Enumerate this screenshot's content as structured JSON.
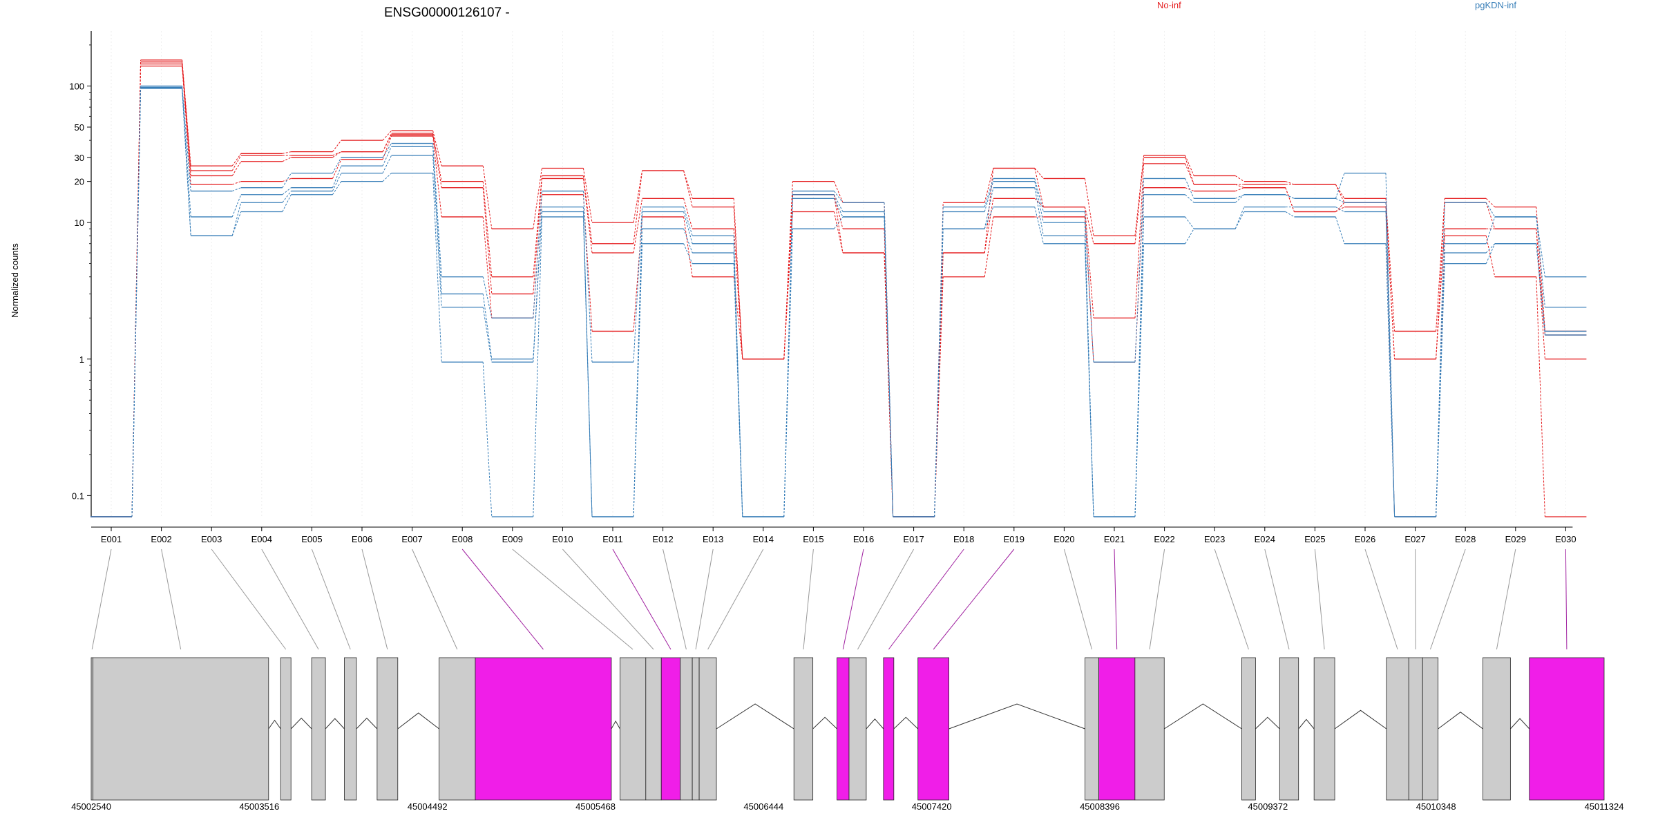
{
  "chart_data": {
    "type": "line",
    "title": "ENSG00000126107 -",
    "ylabel": "Normalized counts",
    "yscale": "log",
    "ylim": [
      0.07,
      200
    ],
    "yticks": [
      {
        "value": 0.1,
        "label": "0.1"
      },
      {
        "value": 1,
        "label": "1"
      },
      {
        "value": 10,
        "label": "10"
      },
      {
        "value": 20,
        "label": "20"
      },
      {
        "value": 30,
        "label": "30"
      },
      {
        "value": 50,
        "label": "50"
      },
      {
        "value": 100,
        "label": "100"
      }
    ],
    "legend": [
      {
        "label": "No-inf",
        "color": "#e41a1c"
      },
      {
        "label": "pgKDN-inf",
        "color": "#377eb8"
      }
    ],
    "grid": "vertical",
    "categories": [
      "E001",
      "E002",
      "E003",
      "E004",
      "E005",
      "E006",
      "E007",
      "E008",
      "E009",
      "E010",
      "E011",
      "E012",
      "E013",
      "E014",
      "E015",
      "E016",
      "E017",
      "E018",
      "E019",
      "E020",
      "E021",
      "E022",
      "E023",
      "E024",
      "E025",
      "E026",
      "E027",
      "E028",
      "E029",
      "E030"
    ],
    "series": [
      {
        "group": "No-inf",
        "color": "#e41a1c",
        "values": [
          0.07,
          155,
          26,
          32,
          33,
          40,
          47,
          26,
          9,
          25,
          10,
          24,
          15,
          1,
          20,
          14,
          0.07,
          14,
          25,
          21,
          8,
          31,
          22,
          20,
          19,
          15,
          1.6,
          15,
          13,
          1.6
        ]
      },
      {
        "group": "No-inf",
        "color": "#e41a1c",
        "values": [
          0.07,
          150,
          24,
          31,
          31,
          33,
          45,
          20,
          4,
          22,
          7,
          24,
          13,
          1,
          16,
          9,
          0.07,
          6,
          25,
          13,
          7,
          30,
          19,
          19,
          19,
          14,
          1,
          14,
          9,
          1.5
        ]
      },
      {
        "group": "No-inf",
        "color": "#e41a1c",
        "values": [
          0.07,
          145,
          22,
          28,
          30,
          33,
          44,
          18,
          3,
          21,
          6,
          15,
          9,
          1,
          16,
          6,
          0.07,
          6,
          15,
          13,
          2,
          27,
          19,
          18,
          12,
          14,
          1,
          9,
          9,
          1
        ]
      },
      {
        "group": "No-inf",
        "color": "#e41a1c",
        "values": [
          0.07,
          140,
          19,
          20,
          21,
          29,
          43,
          11,
          2,
          16,
          1.6,
          11,
          4,
          1,
          12,
          6,
          0.07,
          4,
          11,
          11,
          0.95,
          18,
          17,
          18,
          12,
          13,
          0.07,
          8,
          4,
          0.07
        ]
      },
      {
        "group": "pgKDN-inf",
        "color": "#377eb8",
        "values": [
          0.07,
          100,
          17,
          18,
          23,
          30,
          38,
          4,
          2,
          17,
          0.95,
          13,
          8,
          0.07,
          17,
          14,
          0.07,
          13,
          21,
          12,
          0.95,
          21,
          15,
          16,
          15,
          23,
          0.07,
          14,
          11,
          4
        ]
      },
      {
        "group": "pgKDN-inf",
        "color": "#377eb8",
        "values": [
          0.07,
          98,
          11,
          16,
          18,
          26,
          36,
          3,
          1,
          13,
          0.07,
          12,
          7,
          0.07,
          16,
          12,
          0.07,
          12,
          20,
          10,
          0.07,
          16,
          14,
          16,
          15,
          14,
          0.07,
          7,
          11,
          2.4
        ]
      },
      {
        "group": "pgKDN-inf",
        "color": "#377eb8",
        "values": [
          0.07,
          97,
          8,
          14,
          17,
          23,
          31,
          2.4,
          0.95,
          12,
          0.07,
          9,
          6,
          0.07,
          15,
          11,
          0.07,
          9,
          18,
          8,
          0.07,
          11,
          9,
          13,
          13,
          12,
          0.07,
          6,
          7,
          1.6
        ]
      },
      {
        "group": "pgKDN-inf",
        "color": "#377eb8",
        "values": [
          0.07,
          96,
          8,
          12,
          16,
          20,
          23,
          0.95,
          0.07,
          11,
          0.07,
          7,
          5,
          0.07,
          9,
          11,
          0.07,
          9,
          13,
          7,
          0.07,
          7,
          9,
          12,
          11,
          7,
          0.07,
          5,
          7,
          1.5
        ]
      }
    ],
    "exon_highlight": [
      false,
      false,
      false,
      false,
      false,
      false,
      false,
      true,
      false,
      false,
      true,
      false,
      false,
      false,
      false,
      true,
      false,
      true,
      true,
      false,
      true,
      false,
      false,
      false,
      false,
      false,
      false,
      false,
      false,
      true
    ],
    "gene_model": {
      "coord_range": [
        45002540,
        45011324
      ],
      "coord_labels": [
        "45002540",
        "45003516",
        "45004492",
        "45005468",
        "45006444",
        "45007420",
        "45008396",
        "45009372",
        "45010348",
        "45011324"
      ],
      "exons": [
        {
          "start": 45002540,
          "end": 45002550,
          "hl": false
        },
        {
          "start": 45002550,
          "end": 45003570,
          "hl": false
        },
        {
          "start": 45003640,
          "end": 45003700,
          "hl": false
        },
        {
          "start": 45003820,
          "end": 45003900,
          "hl": false
        },
        {
          "start": 45004010,
          "end": 45004080,
          "hl": false
        },
        {
          "start": 45004200,
          "end": 45004320,
          "hl": false
        },
        {
          "start": 45004560,
          "end": 45004770,
          "hl": false
        },
        {
          "start": 45004770,
          "end": 45005560,
          "hl": true
        },
        {
          "start": 45005610,
          "end": 45005760,
          "hl": false
        },
        {
          "start": 45005760,
          "end": 45005850,
          "hl": false
        },
        {
          "start": 45005850,
          "end": 45005960,
          "hl": true
        },
        {
          "start": 45005960,
          "end": 45006030,
          "hl": false
        },
        {
          "start": 45006030,
          "end": 45006070,
          "hl": false
        },
        {
          "start": 45006070,
          "end": 45006170,
          "hl": false
        },
        {
          "start": 45006620,
          "end": 45006730,
          "hl": false
        },
        {
          "start": 45006870,
          "end": 45006940,
          "hl": true
        },
        {
          "start": 45006940,
          "end": 45007040,
          "hl": false
        },
        {
          "start": 45007140,
          "end": 45007200,
          "hl": true
        },
        {
          "start": 45007340,
          "end": 45007520,
          "hl": true
        },
        {
          "start": 45008310,
          "end": 45008390,
          "hl": false
        },
        {
          "start": 45008390,
          "end": 45008600,
          "hl": true
        },
        {
          "start": 45008600,
          "end": 45008770,
          "hl": false
        },
        {
          "start": 45009220,
          "end": 45009300,
          "hl": false
        },
        {
          "start": 45009440,
          "end": 45009550,
          "hl": false
        },
        {
          "start": 45009640,
          "end": 45009760,
          "hl": false
        },
        {
          "start": 45010060,
          "end": 45010190,
          "hl": false
        },
        {
          "start": 45010190,
          "end": 45010270,
          "hl": false
        },
        {
          "start": 45010270,
          "end": 45010360,
          "hl": false
        },
        {
          "start": 45010620,
          "end": 45010780,
          "hl": false
        },
        {
          "start": 45010890,
          "end": 45011324,
          "hl": true
        }
      ],
      "introns": [
        [
          45003570,
          45003640
        ],
        [
          45003700,
          45003820
        ],
        [
          45003900,
          45004010
        ],
        [
          45004080,
          45004200
        ],
        [
          45004320,
          45004560
        ],
        [
          45005560,
          45005610
        ],
        [
          45006170,
          45006620
        ],
        [
          45006730,
          45006870
        ],
        [
          45007040,
          45007140
        ],
        [
          45007200,
          45007340
        ],
        [
          45007520,
          45008310
        ],
        [
          45008770,
          45009220
        ],
        [
          45009300,
          45009440
        ],
        [
          45009550,
          45009640
        ],
        [
          45009760,
          45010060
        ],
        [
          45010360,
          45010620
        ],
        [
          45010780,
          45010890
        ]
      ]
    }
  }
}
